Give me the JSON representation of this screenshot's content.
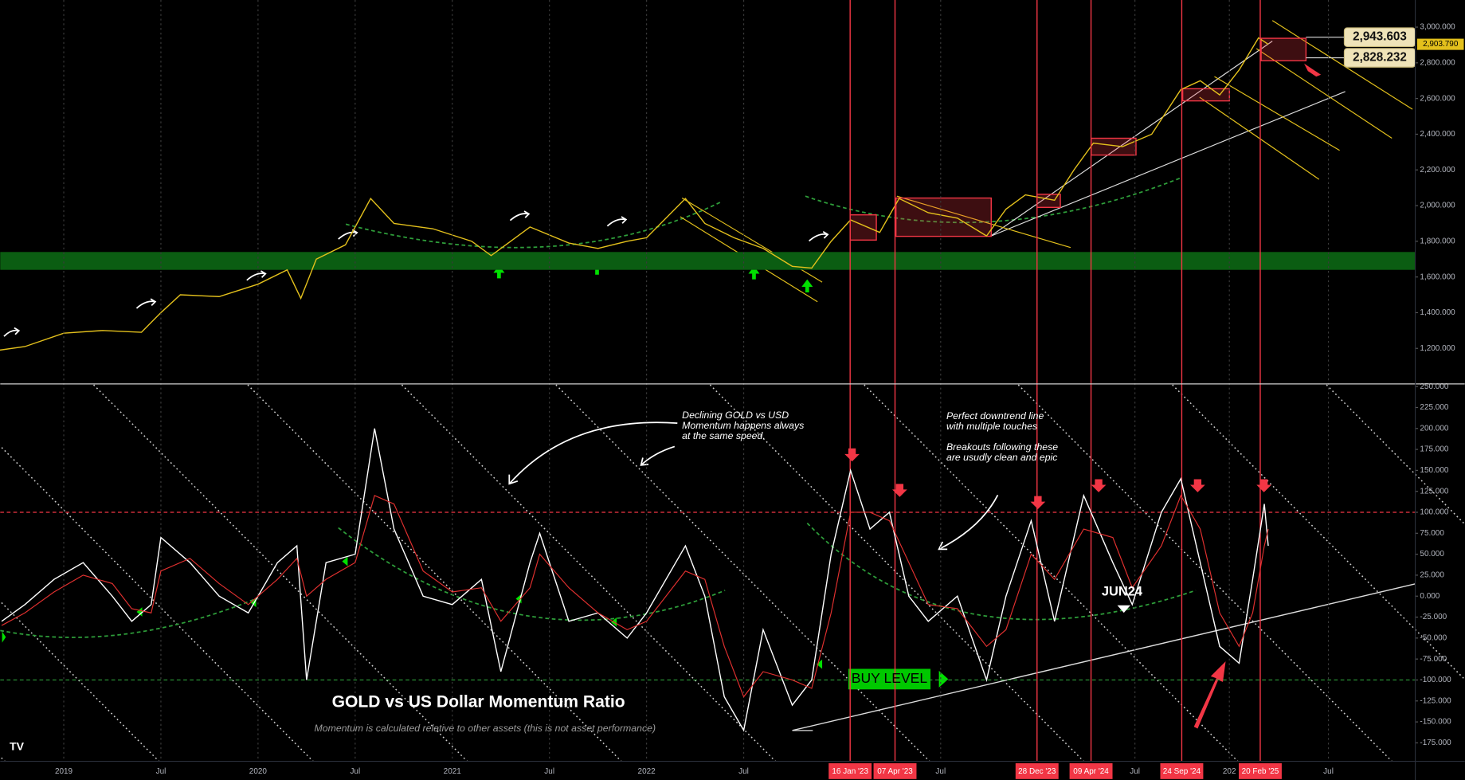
{
  "chart_data": [
    {
      "type": "line",
      "x": [
        2018.67,
        2018.8,
        2019.0,
        2019.2,
        2019.4,
        2019.5,
        2019.6,
        2019.8,
        2020.0,
        2020.15,
        2020.22,
        2020.3,
        2020.45,
        2020.58,
        2020.7,
        2020.9,
        2021.1,
        2021.2,
        2021.4,
        2021.6,
        2021.75,
        2021.9,
        2022.0,
        2022.2,
        2022.3,
        2022.45,
        2022.6,
        2022.75,
        2022.85,
        2022.95,
        2023.05,
        2023.2,
        2023.3,
        2023.45,
        2023.6,
        2023.75,
        2023.85,
        2023.95,
        2024.1,
        2024.2,
        2024.3,
        2024.45,
        2024.6,
        2024.75,
        2024.85,
        2024.95,
        2025.05,
        2025.15,
        2025.2
      ],
      "series": [
        {
          "color": "#e3c01c",
          "values": [
            1190,
            1210,
            1285,
            1300,
            1290,
            1400,
            1500,
            1490,
            1560,
            1640,
            1480,
            1700,
            1780,
            2040,
            1900,
            1870,
            1800,
            1720,
            1880,
            1790,
            1760,
            1800,
            1820,
            2040,
            1900,
            1820,
            1760,
            1660,
            1650,
            1800,
            1920,
            1850,
            2040,
            1960,
            1930,
            1830,
            1980,
            2060,
            2030,
            2200,
            2350,
            2330,
            2400,
            2650,
            2700,
            2620,
            2760,
            2940,
            2904
          ]
        }
      ],
      "xlim": [
        2018.673,
        2025.957
      ],
      "ylim": [
        1006,
        3152
      ],
      "yticks": [
        {
          "value": 1200,
          "label": "1,200.000"
        },
        {
          "value": 1400,
          "label": "1,400.000"
        },
        {
          "value": 1600,
          "label": "1,600.000"
        },
        {
          "value": 1800,
          "label": "1,800.000"
        },
        {
          "value": 2000,
          "label": "2,000.000"
        },
        {
          "value": 2200,
          "label": "2,200.000"
        },
        {
          "value": 2400,
          "label": "2,400.000"
        },
        {
          "value": 2600,
          "label": "2,600.000"
        },
        {
          "value": 2800,
          "label": "2,800.000"
        },
        {
          "value": 3000,
          "label": "3,000.000"
        }
      ],
      "band": [
        1640,
        1740
      ],
      "band_color": "#0b5d12",
      "price_labels": [
        {
          "value": 2943.603,
          "label": "2,943.603"
        },
        {
          "value": 2828.232,
          "label": "2,828.232"
        }
      ],
      "last_price": {
        "value": 2903.79,
        "label": "2,903.790"
      }
    },
    {
      "type": "line",
      "title": "GOLD vs US Dollar Momentum Ratio",
      "subtitle": "Momentum is calculated relative to other assets (this is not asset performance)",
      "x": [
        2018.68,
        2018.8,
        2018.95,
        2019.1,
        2019.25,
        2019.35,
        2019.45,
        2019.5,
        2019.65,
        2019.8,
        2019.95,
        2020.1,
        2020.2,
        2020.25,
        2020.35,
        2020.5,
        2020.6,
        2020.7,
        2020.85,
        2021.0,
        2021.15,
        2021.25,
        2021.4,
        2021.45,
        2021.6,
        2021.75,
        2021.9,
        2022.0,
        2022.2,
        2022.3,
        2022.4,
        2022.5,
        2022.6,
        2022.75,
        2022.85,
        2022.95,
        2023.05,
        2023.15,
        2023.25,
        2023.35,
        2023.45,
        2023.6,
        2023.75,
        2023.85,
        2023.98,
        2024.1,
        2024.25,
        2024.4,
        2024.5,
        2024.65,
        2024.75,
        2024.85,
        2024.95,
        2025.05,
        2025.12,
        2025.18,
        2025.2
      ],
      "series": [
        {
          "color": "#ffffff",
          "values": [
            -30,
            -10,
            20,
            40,
            0,
            -30,
            -10,
            70,
            40,
            0,
            -20,
            40,
            60,
            -100,
            40,
            50,
            200,
            80,
            0,
            -10,
            20,
            -90,
            40,
            75,
            -30,
            -20,
            -50,
            -20,
            60,
            0,
            -120,
            -160,
            -40,
            -130,
            -100,
            50,
            150,
            80,
            100,
            0,
            -30,
            0,
            -100,
            0,
            90,
            -30,
            120,
            40,
            -10,
            100,
            140,
            40,
            -60,
            -80,
            20,
            110,
            60
          ]
        },
        {
          "color": "#e0302f",
          "values": [
            -35,
            -20,
            5,
            25,
            15,
            -15,
            -20,
            30,
            45,
            15,
            -10,
            20,
            45,
            0,
            20,
            40,
            120,
            110,
            30,
            5,
            10,
            -30,
            10,
            50,
            10,
            -20,
            -40,
            -30,
            30,
            20,
            -60,
            -120,
            -90,
            -100,
            -110,
            -20,
            100,
            100,
            90,
            40,
            -10,
            -15,
            -60,
            -40,
            50,
            20,
            80,
            70,
            10,
            60,
            120,
            80,
            -20,
            -60,
            -20,
            60,
            80
          ]
        }
      ],
      "xlim": [
        2018.673,
        2025.957
      ],
      "ylim": [
        -197,
        252
      ],
      "yticks": [
        {
          "value": 250,
          "label": "250.000"
        },
        {
          "value": 225,
          "label": "225.000"
        },
        {
          "value": 200,
          "label": "200.000"
        },
        {
          "value": 175,
          "label": "175.000"
        },
        {
          "value": 150,
          "label": "150.000"
        },
        {
          "value": 125,
          "label": "125.000"
        },
        {
          "value": 100,
          "label": "100.000"
        },
        {
          "value": 75,
          "label": "75.000"
        },
        {
          "value": 50,
          "label": "50.000"
        },
        {
          "value": 25,
          "label": "25.000"
        },
        {
          "value": 0,
          "label": "0.000"
        },
        {
          "value": -25,
          "label": "-25.000"
        },
        {
          "value": -50,
          "label": "-50.000"
        },
        {
          "value": -75,
          "label": "-75.000"
        },
        {
          "value": -100,
          "label": "-100.000"
        },
        {
          "value": -125,
          "label": "-125.000"
        },
        {
          "value": -150,
          "label": "-150.000"
        },
        {
          "value": -175,
          "label": "-175.000"
        }
      ],
      "xticks": [
        2019,
        {
          "value": 2019.5,
          "label": "Jul"
        },
        2020,
        {
          "value": 2020.5,
          "label": "Jul"
        },
        2021,
        {
          "value": 2021.5,
          "label": "Jul"
        },
        2022,
        {
          "value": 2022.5,
          "label": "Jul"
        },
        {
          "value": 2023.048,
          "label": "16 Jan '23"
        },
        {
          "value": 2023.279,
          "label": "07 Apr '23"
        },
        {
          "value": 2023.514,
          "label": "Jul"
        },
        {
          "value": 2024.01,
          "label": "28 Dec '23"
        },
        {
          "value": 2024.288,
          "label": "09 Apr '24"
        },
        {
          "value": 2024.514,
          "label": "Jul"
        },
        {
          "value": 2024.755,
          "label": "24 Sep '24"
        },
        {
          "value": 2025,
          "label": "202"
        },
        {
          "value": 2025.159,
          "label": "20 Feb '25"
        },
        {
          "value": 2025.51,
          "label": "Jul"
        }
      ],
      "vlines": [
        2023.048,
        2023.279,
        2024.01,
        2024.288,
        2024.755,
        2025.159
      ],
      "vline_color": "#f23645",
      "hlines": [
        {
          "value": 100,
          "color": "#f23645"
        },
        {
          "value": -100,
          "color": "#2e9e3a"
        }
      ],
      "grid_x": true,
      "annotations": {
        "momentum_note": [
          "Declining GOLD vs USD",
          "Momentum happens always",
          "at the same speed."
        ],
        "downtrend_note": [
          "Perfect downtrend line",
          "with multiple touches"
        ],
        "breakout_note": [
          "Breakouts following these",
          "are usudly clean and epic"
        ],
        "jun24": "JUN24",
        "buy_level": "BUY LEVEL"
      }
    }
  ]
}
